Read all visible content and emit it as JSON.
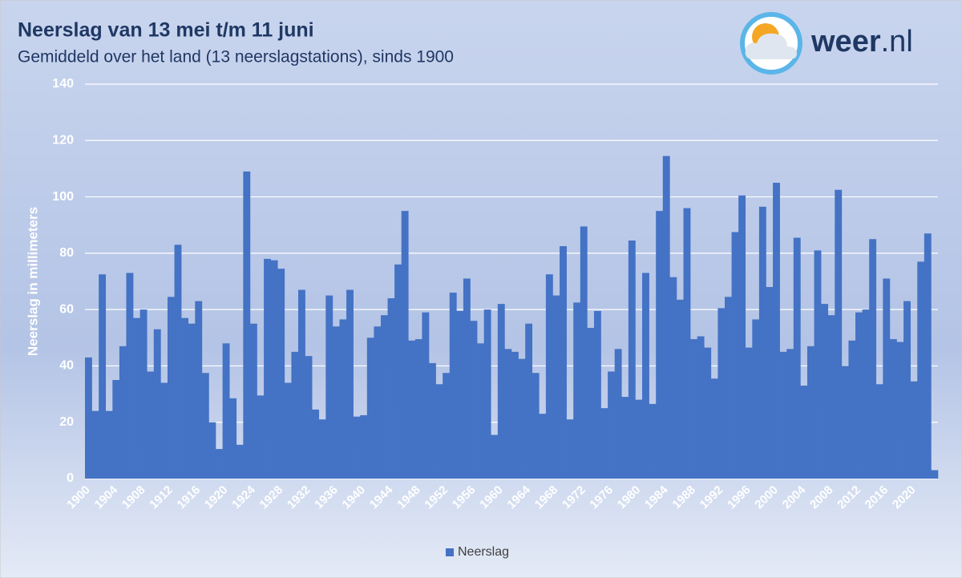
{
  "chart_data": {
    "type": "bar",
    "title": "Neerslag van 13 mei t/m 11 juni",
    "subtitle": "Gemiddeld over het land (13 neerslagstations), sinds 1900",
    "y_label": "Neerslag in millimeters",
    "logo": {
      "bold": "weer",
      "rest": ".nl"
    },
    "categories": [
      "1900",
      null,
      null,
      null,
      "1904",
      null,
      null,
      null,
      "1908",
      null,
      null,
      null,
      "1912",
      null,
      null,
      null,
      "1916",
      null,
      null,
      null,
      "1920",
      null,
      null,
      null,
      "1924",
      null,
      null,
      null,
      "1928",
      null,
      null,
      null,
      "1932",
      null,
      null,
      null,
      "1936",
      null,
      null,
      null,
      "1940",
      null,
      null,
      null,
      "1944",
      null,
      null,
      null,
      "1948",
      null,
      null,
      null,
      "1952",
      null,
      null,
      null,
      "1956",
      null,
      null,
      null,
      "1960",
      null,
      null,
      null,
      "1964",
      null,
      null,
      null,
      "1968",
      null,
      null,
      null,
      "1972",
      null,
      null,
      null,
      "1976",
      null,
      null,
      null,
      "1980",
      null,
      null,
      null,
      "1984",
      null,
      null,
      null,
      "1988",
      null,
      null,
      null,
      "1992",
      null,
      null,
      null,
      "1996",
      null,
      null,
      null,
      "2000",
      null,
      null,
      null,
      "2004",
      null,
      null,
      null,
      "2008",
      null,
      null,
      null,
      "2012",
      null,
      null,
      null,
      "2016",
      null,
      null,
      null,
      "2020",
      null,
      null,
      null
    ],
    "series": [
      {
        "name": "Neerslag",
        "color": "#4472c4",
        "values": [
          43,
          24,
          72.5,
          24,
          35,
          47,
          73,
          57,
          60,
          38,
          53,
          34,
          64.5,
          83,
          57,
          55,
          63,
          37.5,
          20,
          10.5,
          48,
          28.5,
          12,
          109,
          55,
          29.5,
          78,
          77.5,
          74.5,
          34,
          45,
          67,
          43.5,
          24.5,
          21,
          65,
          54,
          56.5,
          67,
          22,
          22.5,
          50,
          54,
          58,
          64,
          76,
          95,
          49,
          49.5,
          59,
          41,
          33.5,
          37.5,
          66,
          59.5,
          71,
          56,
          48,
          60,
          15.5,
          62,
          46,
          45,
          42.5,
          55,
          37.5,
          23,
          72.5,
          65,
          82.5,
          21,
          62.5,
          89.5,
          53.5,
          59.5,
          25,
          38,
          46,
          29,
          84.5,
          28,
          73,
          26.5,
          95,
          114.5,
          71.5,
          63.5,
          96,
          49.5,
          50.5,
          46.5,
          35.5,
          60.5,
          64.5,
          87.5,
          100.5,
          46.5,
          56.5,
          96.5,
          68,
          105,
          45,
          46,
          85.5,
          33,
          47,
          81,
          62,
          58,
          102.5,
          40,
          49,
          59,
          60,
          85,
          33.5,
          71,
          49.5,
          48.5,
          63,
          34.5,
          77,
          87,
          3
        ]
      }
    ],
    "ylim": [
      0,
      140
    ],
    "yticks": [
      0,
      20,
      40,
      60,
      80,
      100,
      120,
      140
    ],
    "grid": true,
    "legend": "bottom"
  }
}
